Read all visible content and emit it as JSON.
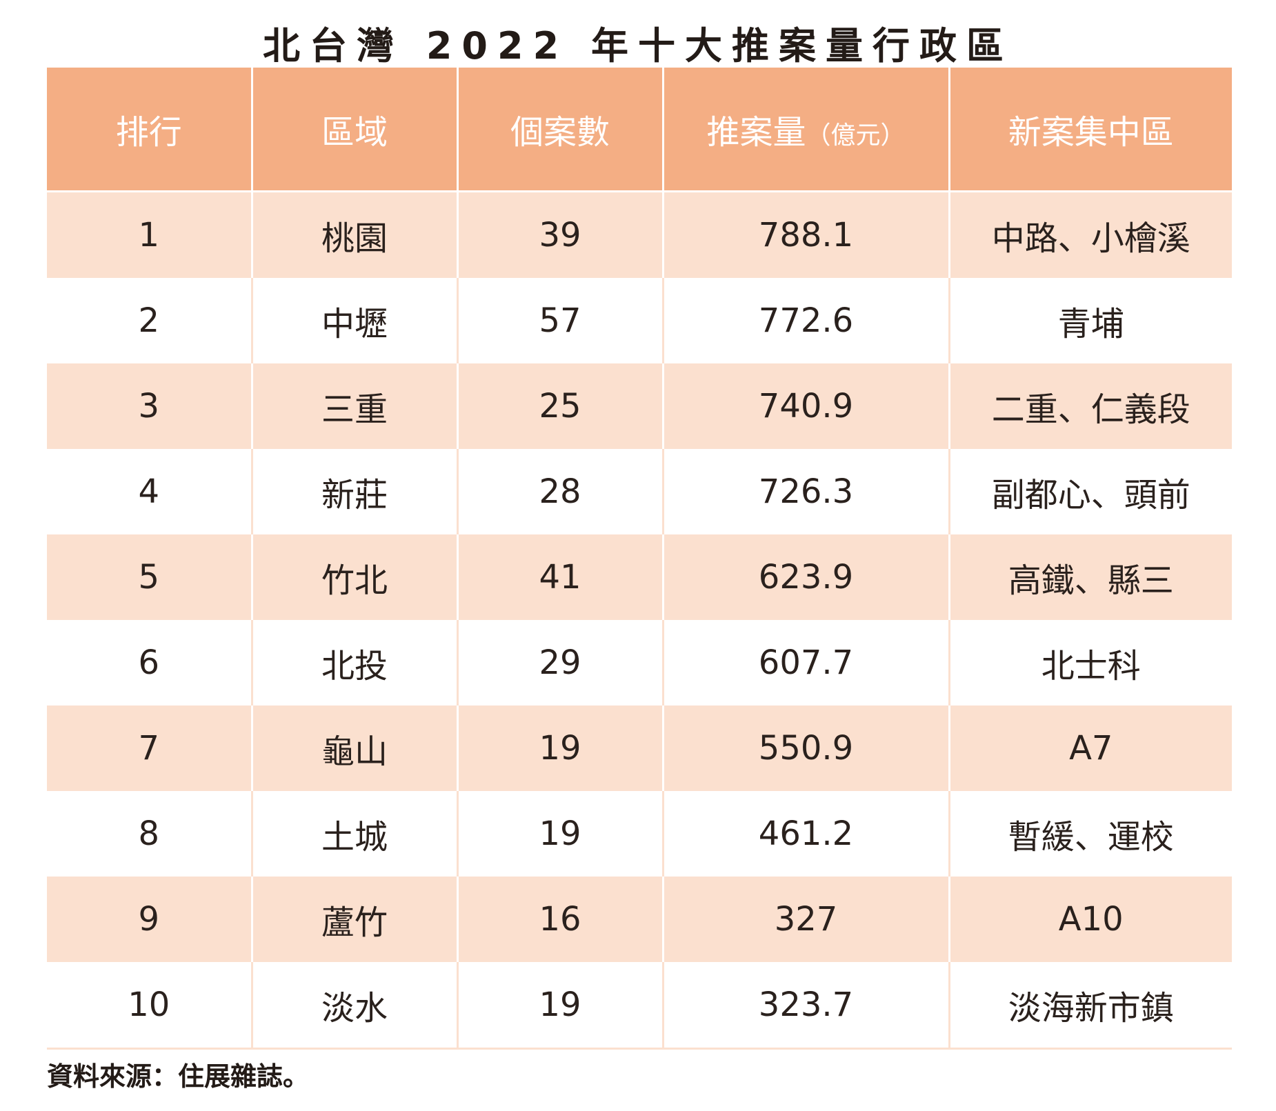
{
  "chart_data": {
    "type": "table",
    "title": "北台灣 2022 年十大推案量行政區",
    "columns": [
      "排行",
      "區域",
      "個案數",
      "推案量",
      "新案集中區"
    ],
    "column_unit": {
      "推案量": "（億元）"
    },
    "rows": [
      [
        "1",
        "桃園",
        "39",
        "788.1",
        "中路、小檜溪"
      ],
      [
        "2",
        "中壢",
        "57",
        "772.6",
        "青埔"
      ],
      [
        "3",
        "三重",
        "25",
        "740.9",
        "二重、仁義段"
      ],
      [
        "4",
        "新莊",
        "28",
        "726.3",
        "副都心、頭前"
      ],
      [
        "5",
        "竹北",
        "41",
        "623.9",
        "高鐵、縣三"
      ],
      [
        "6",
        "北投",
        "29",
        "607.7",
        "北士科"
      ],
      [
        "7",
        "龜山",
        "19",
        "550.9",
        "A7"
      ],
      [
        "8",
        "土城",
        "19",
        "461.2",
        "暫緩、運校"
      ],
      [
        "9",
        "蘆竹",
        "16",
        "327",
        "A10"
      ],
      [
        "10",
        "淡水",
        "19",
        "323.7",
        "淡海新市鎮"
      ]
    ],
    "source": "資料來源：住展雜誌。"
  },
  "colors": {
    "header_bg": "#f4ae84",
    "header_text": "#ffffff",
    "stripe_bg": "#fbe0cf",
    "plain_bg": "#ffffff",
    "text": "#2a211d"
  }
}
